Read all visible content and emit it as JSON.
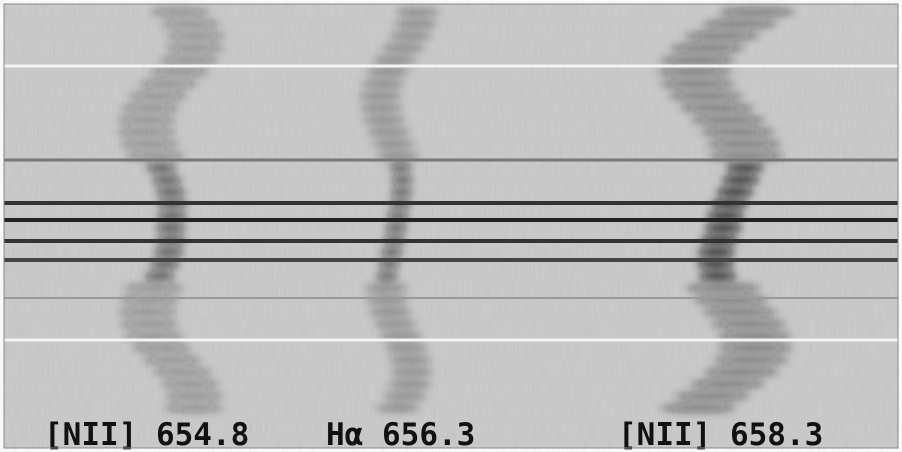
{
  "labels": [
    "[NII] 654.8",
    "Hα 656.3",
    "[NII] 658.3"
  ]
}
